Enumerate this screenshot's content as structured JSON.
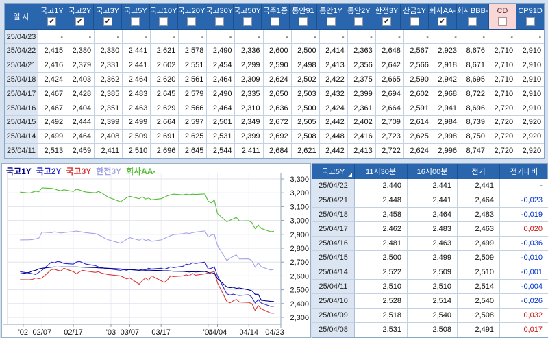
{
  "colors": {
    "page_bg": "#d5e1ee",
    "header_bg": "#2a66ad",
    "header_text": "#ffffff",
    "date_cell_bg": "#dce6f2",
    "highlight_header_bg": "#f8d8d6",
    "negative_change": "#0033cc",
    "positive_change": "#cc1111",
    "series_gov1y": "#000088",
    "series_gov2y": "#2626cf",
    "series_gov3y": "#d93838",
    "series_hanjeon3y": "#a3a3ea",
    "series_corpAA": "#52bd34"
  },
  "rate_table": {
    "date_header": "일 자",
    "columns": [
      {
        "label": "국고1Y",
        "checked": true,
        "highlighted": false
      },
      {
        "label": "국고2Y",
        "checked": true,
        "highlighted": false
      },
      {
        "label": "국고3Y",
        "checked": true,
        "highlighted": false
      },
      {
        "label": "국고5Y",
        "checked": false,
        "highlighted": false
      },
      {
        "label": "국고10Y",
        "checked": false,
        "highlighted": false
      },
      {
        "label": "국고20Y",
        "checked": false,
        "highlighted": false
      },
      {
        "label": "국고30Y",
        "checked": false,
        "highlighted": false
      },
      {
        "label": "국고50Y",
        "checked": false,
        "highlighted": false
      },
      {
        "label": "국주1종",
        "checked": false,
        "highlighted": false
      },
      {
        "label": "통안91",
        "checked": false,
        "highlighted": false
      },
      {
        "label": "통안1Y",
        "checked": false,
        "highlighted": false
      },
      {
        "label": "통안2Y",
        "checked": false,
        "highlighted": false
      },
      {
        "label": "한전3Y",
        "checked": true,
        "highlighted": false
      },
      {
        "label": "산금1Y",
        "checked": false,
        "highlighted": false
      },
      {
        "label": "회사AA-",
        "checked": true,
        "highlighted": false
      },
      {
        "label": "회사BBB-",
        "checked": false,
        "highlighted": false
      },
      {
        "label": "CD",
        "checked": false,
        "highlighted": true
      },
      {
        "label": "CP91D",
        "checked": false,
        "highlighted": false
      }
    ],
    "rows": [
      {
        "date": "25/04/23",
        "values": [
          "-",
          "-",
          "-",
          "-",
          "-",
          "-",
          "-",
          "-",
          "-",
          "-",
          "-",
          "-",
          "-",
          "-",
          "-",
          "-",
          "-",
          "-"
        ]
      },
      {
        "date": "25/04/22",
        "values": [
          "2,415",
          "2,380",
          "2,330",
          "2,441",
          "2,621",
          "2,578",
          "2,490",
          "2,336",
          "2,600",
          "2,500",
          "2,414",
          "2,363",
          "2,648",
          "2,567",
          "2,923",
          "8,676",
          "2,710",
          "2,910"
        ]
      },
      {
        "date": "25/04/21",
        "values": [
          "2,416",
          "2,379",
          "2,331",
          "2,441",
          "2,602",
          "2,551",
          "2,454",
          "2,299",
          "2,590",
          "2,498",
          "2,413",
          "2,356",
          "2,642",
          "2,566",
          "2,918",
          "8,671",
          "2,710",
          "2,910"
        ]
      },
      {
        "date": "25/04/18",
        "values": [
          "2,424",
          "2,403",
          "2,362",
          "2,464",
          "2,620",
          "2,561",
          "2,464",
          "2,309",
          "2,624",
          "2,502",
          "2,422",
          "2,375",
          "2,665",
          "2,590",
          "2,942",
          "8,695",
          "2,710",
          "2,910"
        ]
      },
      {
        "date": "25/04/17",
        "values": [
          "2,467",
          "2,428",
          "2,385",
          "2,483",
          "2,645",
          "2,579",
          "2,490",
          "2,335",
          "2,650",
          "2,503",
          "2,432",
          "2,399",
          "2,694",
          "2,602",
          "2,968",
          "8,722",
          "2,710",
          "2,910"
        ]
      },
      {
        "date": "25/04/16",
        "values": [
          "2,467",
          "2,404",
          "2,351",
          "2,463",
          "2,629",
          "2,566",
          "2,464",
          "2,310",
          "2,636",
          "2,500",
          "2,424",
          "2,361",
          "2,664",
          "2,591",
          "2,941",
          "8,696",
          "2,720",
          "2,910"
        ]
      },
      {
        "date": "25/04/15",
        "values": [
          "2,492",
          "2,444",
          "2,399",
          "2,499",
          "2,664",
          "2,597",
          "2,501",
          "2,349",
          "2,672",
          "2,505",
          "2,442",
          "2,402",
          "2,709",
          "2,614",
          "2,984",
          "8,739",
          "2,720",
          "2,920"
        ]
      },
      {
        "date": "25/04/14",
        "values": [
          "2,499",
          "2,464",
          "2,408",
          "2,509",
          "2,691",
          "2,625",
          "2,531",
          "2,399",
          "2,692",
          "2,508",
          "2,448",
          "2,416",
          "2,723",
          "2,625",
          "2,998",
          "8,750",
          "2,720",
          "2,920"
        ]
      },
      {
        "date": "25/04/11",
        "values": [
          "2,513",
          "2,459",
          "2,411",
          "2,510",
          "2,696",
          "2,645",
          "2,544",
          "2,411",
          "2,684",
          "2,621",
          "2,442",
          "2,413",
          "2,722",
          "2,624",
          "2,996",
          "8,747",
          "2,720",
          "2,920"
        ]
      }
    ]
  },
  "chart_data": {
    "type": "line",
    "title": "",
    "ylabel": "",
    "xlabel": "",
    "ylim": [
      2.25,
      3.34
    ],
    "y_ticks": [
      "3,300",
      "3,200",
      "3,100",
      "3,000",
      "2,900",
      "2,800",
      "2,700",
      "2,600",
      "2,500",
      "2,400",
      "2,300"
    ],
    "y_tick_values": [
      3.3,
      3.2,
      3.1,
      3.0,
      2.9,
      2.8,
      2.7,
      2.6,
      2.5,
      2.4,
      2.3
    ],
    "x_ticks": [
      {
        "label": "'02",
        "day": 5
      },
      {
        "label": "02/07",
        "day": 11
      },
      {
        "label": "02/17",
        "day": 21
      },
      {
        "label": "'03",
        "day": 33
      },
      {
        "label": "03/07",
        "day": 39
      },
      {
        "label": "03/17",
        "day": 49
      },
      {
        "label": "'04",
        "day": 64
      },
      {
        "label": "04/04",
        "day": 67
      },
      {
        "label": "04/14",
        "day": 77
      },
      {
        "label": "04/23",
        "day": 86
      }
    ],
    "day_span": 87,
    "days": [
      4,
      7,
      8,
      9,
      10,
      11,
      14,
      15,
      16,
      17,
      18,
      21,
      22,
      23,
      24,
      25,
      28,
      29,
      30,
      31,
      32,
      36,
      37,
      38,
      39,
      42,
      43,
      44,
      45,
      46,
      49,
      50,
      51,
      52,
      53,
      56,
      57,
      58,
      59,
      60,
      63,
      64,
      65,
      66,
      67,
      70,
      71,
      72,
      73,
      74,
      77,
      78,
      79,
      80,
      81,
      84,
      85
    ],
    "legend_position": "top-left",
    "grid": true,
    "series": [
      {
        "name": "회사AA-",
        "color_key": "series_corpAA",
        "values": [
          3.205,
          3.198,
          3.205,
          3.212,
          3.208,
          3.236,
          3.232,
          3.228,
          3.22,
          3.215,
          3.222,
          3.21,
          3.226,
          3.22,
          3.212,
          3.206,
          3.2,
          3.21,
          3.2,
          3.185,
          3.17,
          3.135,
          3.15,
          3.165,
          3.175,
          3.158,
          3.172,
          3.156,
          3.162,
          3.15,
          3.158,
          3.168,
          3.178,
          3.185,
          3.19,
          3.185,
          3.19,
          3.186,
          3.19,
          3.188,
          3.192,
          3.14,
          3.128,
          3.148,
          3.05,
          2.99,
          3.002,
          3.012,
          3.022,
          2.996,
          2.998,
          2.984,
          2.941,
          2.968,
          2.942,
          2.918,
          2.923
        ]
      },
      {
        "name": "한전3Y",
        "color_key": "series_hanjeon3y",
        "values": [
          2.86,
          2.861,
          2.863,
          2.868,
          2.873,
          2.916,
          2.912,
          2.918,
          2.914,
          2.91,
          2.913,
          2.92,
          2.924,
          2.92,
          2.916,
          2.912,
          2.905,
          2.896,
          2.886,
          2.872,
          2.862,
          2.836,
          2.85,
          2.864,
          2.876,
          2.858,
          2.87,
          2.856,
          2.862,
          2.85,
          2.86,
          2.87,
          2.88,
          2.89,
          2.898,
          2.905,
          2.91,
          2.906,
          2.912,
          2.916,
          2.925,
          2.88,
          2.895,
          2.9,
          2.82,
          2.71,
          2.728,
          2.74,
          2.752,
          2.722,
          2.723,
          2.709,
          2.664,
          2.694,
          2.665,
          2.642,
          2.648
        ]
      },
      {
        "name": "국고3Y",
        "color_key": "series_gov3y",
        "values": [
          2.573,
          2.572,
          2.575,
          2.585,
          2.58,
          2.585,
          2.645,
          2.648,
          2.64,
          2.635,
          2.655,
          2.63,
          2.615,
          2.63,
          2.64,
          2.635,
          2.625,
          2.63,
          2.62,
          2.615,
          2.61,
          2.6,
          2.59,
          2.578,
          2.585,
          2.54,
          2.565,
          2.585,
          2.568,
          2.6,
          2.565,
          2.552,
          2.57,
          2.6,
          2.595,
          2.6,
          2.608,
          2.6,
          2.618,
          2.605,
          2.615,
          2.62,
          2.625,
          2.63,
          2.55,
          2.415,
          2.405,
          2.42,
          2.43,
          2.411,
          2.408,
          2.399,
          2.351,
          2.385,
          2.362,
          2.331,
          2.33
        ]
      },
      {
        "name": "국고2Y",
        "color_key": "series_gov2y",
        "values": [
          2.63,
          2.62,
          2.615,
          2.61,
          2.625,
          2.64,
          2.7,
          2.695,
          2.705,
          2.7,
          2.69,
          2.685,
          2.7,
          2.705,
          2.695,
          2.685,
          2.675,
          2.665,
          2.66,
          2.655,
          2.652,
          2.64,
          2.645,
          2.64,
          2.648,
          2.64,
          2.65,
          2.645,
          2.655,
          2.65,
          2.655,
          2.648,
          2.655,
          2.665,
          2.66,
          2.67,
          2.685,
          2.68,
          2.695,
          2.69,
          2.7,
          2.65,
          2.655,
          2.665,
          2.6,
          2.47,
          2.462,
          2.468,
          2.462,
          2.459,
          2.464,
          2.444,
          2.404,
          2.428,
          2.403,
          2.379,
          2.38
        ]
      },
      {
        "name": "국고1Y",
        "color_key": "series_gov1y",
        "values": [
          2.615,
          2.625,
          2.635,
          2.64,
          2.65,
          2.655,
          2.663,
          2.665,
          2.664,
          2.665,
          2.665,
          2.665,
          2.665,
          2.664,
          2.663,
          2.662,
          2.66,
          2.658,
          2.657,
          2.656,
          2.655,
          2.65,
          2.648,
          2.646,
          2.645,
          2.64,
          2.642,
          2.64,
          2.641,
          2.64,
          2.638,
          2.636,
          2.637,
          2.635,
          2.633,
          2.632,
          2.63,
          2.628,
          2.63,
          2.628,
          2.632,
          2.625,
          2.615,
          2.62,
          2.58,
          2.52,
          2.515,
          2.518,
          2.51,
          2.513,
          2.499,
          2.492,
          2.467,
          2.467,
          2.424,
          2.416,
          2.415
        ]
      }
    ],
    "legend_order": [
      "국고1Y",
      "국고2Y",
      "국고3Y",
      "한전3Y",
      "회사AA-"
    ],
    "legend_color_keys": [
      "series_gov1y",
      "series_gov2y",
      "series_gov3y",
      "series_hanjeon3y",
      "series_corpAA"
    ]
  },
  "detail_table": {
    "title_column": "국고5Y",
    "columns": [
      "11시30분",
      "16시00분",
      "전기",
      "전기대비"
    ],
    "rows": [
      {
        "date": "25/04/22",
        "t1130": "2,440",
        "t1600": "2,441",
        "prev": "2,441",
        "change": "-",
        "change_dir": "none"
      },
      {
        "date": "25/04/21",
        "t1130": "2,448",
        "t1600": "2,441",
        "prev": "2,464",
        "change": "-0,023",
        "change_dir": "down"
      },
      {
        "date": "25/04/18",
        "t1130": "2,458",
        "t1600": "2,464",
        "prev": "2,483",
        "change": "-0,019",
        "change_dir": "down"
      },
      {
        "date": "25/04/17",
        "t1130": "2,462",
        "t1600": "2,483",
        "prev": "2,463",
        "change": "0,020",
        "change_dir": "up"
      },
      {
        "date": "25/04/16",
        "t1130": "2,481",
        "t1600": "2,463",
        "prev": "2,499",
        "change": "-0,036",
        "change_dir": "down"
      },
      {
        "date": "25/04/15",
        "t1130": "2,500",
        "t1600": "2,499",
        "prev": "2,509",
        "change": "-0,010",
        "change_dir": "down"
      },
      {
        "date": "25/04/14",
        "t1130": "2,522",
        "t1600": "2,509",
        "prev": "2,510",
        "change": "-0,001",
        "change_dir": "down"
      },
      {
        "date": "25/04/11",
        "t1130": "2,510",
        "t1600": "2,510",
        "prev": "2,514",
        "change": "-0,004",
        "change_dir": "down"
      },
      {
        "date": "25/04/10",
        "t1130": "2,528",
        "t1600": "2,514",
        "prev": "2,540",
        "change": "-0,026",
        "change_dir": "down"
      },
      {
        "date": "25/04/09",
        "t1130": "2,518",
        "t1600": "2,540",
        "prev": "2,508",
        "change": "0,032",
        "change_dir": "up"
      },
      {
        "date": "25/04/08",
        "t1130": "2,531",
        "t1600": "2,508",
        "prev": "2,491",
        "change": "0,017",
        "change_dir": "up"
      }
    ]
  }
}
